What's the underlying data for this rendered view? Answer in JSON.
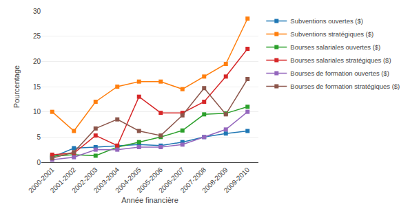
{
  "chart_data": {
    "type": "line",
    "categories": [
      "2000-2001",
      "2001-2002",
      "2002-2003",
      "2003-2004",
      "2004-2005",
      "2005-2006",
      "2006-2007",
      "2007-2008",
      "2008-2009",
      "2009-2010"
    ],
    "series": [
      {
        "name": "Subventions ouvertes ($)",
        "values": [
          1.0,
          2.8,
          3.0,
          3.2,
          3.5,
          3.3,
          4.0,
          5.0,
          5.7,
          6.2
        ]
      },
      {
        "name": "Subventions stratégiques ($)",
        "values": [
          10.0,
          6.2,
          12.0,
          15.0,
          16.0,
          16.0,
          14.5,
          17.0,
          19.5,
          28.5
        ]
      },
      {
        "name": "Bourses salariales ouvertes ($)",
        "values": [
          1.2,
          1.5,
          1.3,
          3.0,
          4.0,
          5.0,
          6.3,
          9.5,
          9.7,
          11.0
        ]
      },
      {
        "name": "Bourses salariales stratégiques ($)",
        "values": [
          1.5,
          1.8,
          5.3,
          3.3,
          13.0,
          9.8,
          9.8,
          12.0,
          17.0,
          22.5
        ]
      },
      {
        "name": "Bourses de formation ouvertes ($)",
        "values": [
          0.5,
          1.0,
          2.5,
          2.5,
          3.0,
          3.0,
          3.5,
          5.0,
          6.5,
          10.0
        ]
      },
      {
        "name": "Bourses de formation stratégiques ($)",
        "values": [
          0.8,
          2.0,
          6.7,
          8.5,
          6.2,
          5.3,
          9.3,
          14.7,
          9.5,
          16.5
        ]
      }
    ],
    "xlabel": "Année financière",
    "ylabel": "Pourcentage",
    "ylim": [
      0,
      30
    ],
    "yticks": [
      0,
      5,
      10,
      15,
      20,
      25,
      30
    ],
    "grid": true,
    "marker": "square"
  }
}
